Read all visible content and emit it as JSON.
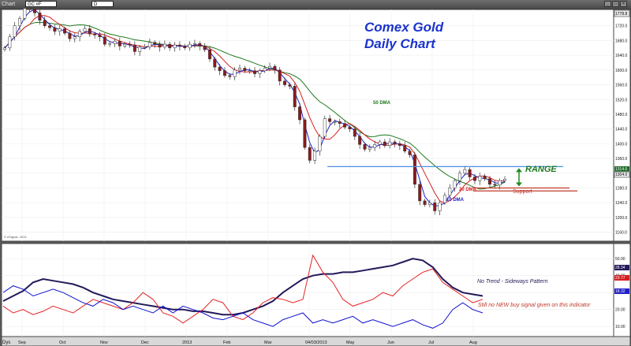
{
  "window": {
    "title": "Chart",
    "symbol": "GC #F",
    "interval": "D",
    "btn_min": "_",
    "btn_max": "□",
    "btn_close": "×"
  },
  "colors": {
    "price_up": "#ffffff",
    "price_down": "#8b1a1a",
    "ma10": "#2020c8",
    "ma20": "#d42020",
    "ma50": "#1f7a1f",
    "range_line": "#4a90e2",
    "support_line": "#c0392b",
    "osc_dark": "#221a5a",
    "osc_red": "#e52222",
    "osc_blue": "#1010d0",
    "title": "#1a33cc",
    "range_arrow": "#1f8a1f"
  },
  "chart_data": [
    {
      "type": "line",
      "panel": "price",
      "title": "Comex Gold",
      "subtitle": "Daily Chart",
      "y_ticks": [
        "1720.0",
        "1680.0",
        "1640.0",
        "1600.0",
        "1560.0",
        "1520.0",
        "1480.0",
        "1440.0",
        "1400.0",
        "1360.0",
        "1320.0",
        "1280.0",
        "1240.0",
        "1200.0",
        "1160.0"
      ],
      "ylim": [
        1140,
        1760
      ],
      "price_box_top": "1778.8",
      "price_box_last": "1314.6",
      "price_box_last2": "1304.0",
      "x_labels": [
        "Sep",
        "Oct",
        "Nov",
        "Dec",
        "2013",
        "Feb",
        "Mar",
        "04/03/2013",
        "May",
        "Jun",
        "Jul",
        "Aug"
      ],
      "closes": [
        1660,
        1690,
        1720,
        1740,
        1770,
        1765,
        1755,
        1735,
        1720,
        1715,
        1705,
        1712,
        1700,
        1685,
        1690,
        1705,
        1712,
        1698,
        1695,
        1690,
        1670,
        1672,
        1678,
        1665,
        1670,
        1668,
        1650,
        1662,
        1663,
        1675,
        1670,
        1662,
        1670,
        1660,
        1668,
        1665,
        1660,
        1670,
        1672,
        1665,
        1655,
        1630,
        1608,
        1598,
        1585,
        1582,
        1600,
        1605,
        1598,
        1598,
        1590,
        1598,
        1605,
        1610,
        1600,
        1570,
        1560,
        1556,
        1500,
        1465,
        1390,
        1355,
        1380,
        1420,
        1468,
        1460,
        1460,
        1455,
        1445,
        1440,
        1420,
        1398,
        1385,
        1390,
        1398,
        1405,
        1395,
        1405,
        1400,
        1395,
        1380,
        1370,
        1290,
        1245,
        1235,
        1240,
        1218,
        1240,
        1260,
        1280,
        1300,
        1320,
        1330,
        1310,
        1300,
        1312,
        1305,
        1290,
        1288,
        1300,
        1304
      ],
      "series": [
        {
          "name": "10 DMA",
          "label": "10 DMA"
        },
        {
          "name": "20 DMA",
          "label": "20 DMA"
        },
        {
          "name": "50 DMA",
          "label": "50 DMA"
        }
      ],
      "annotations": {
        "range": "RANGE",
        "support": "Support",
        "range_top": 1338,
        "range_bottom": 1280,
        "support_level": 1272,
        "copyright": "© eSignal, 2013"
      }
    },
    {
      "type": "line",
      "panel": "oscillator",
      "y_ticks": [
        "50.00",
        "40.00",
        "30.00",
        "20.00",
        "10.00"
      ],
      "ylim": [
        5,
        58
      ],
      "value_boxes": [
        "28.34",
        "23.77",
        "18.32"
      ],
      "series": [
        {
          "name": "ADX",
          "values": [
            25,
            28,
            31,
            36,
            38,
            37,
            36,
            35,
            33,
            30,
            28,
            26,
            25,
            24,
            23,
            22,
            21,
            20,
            20,
            19,
            19,
            18,
            17,
            17,
            18,
            20,
            22,
            25,
            30,
            34,
            38,
            40,
            41,
            41,
            42,
            42,
            43,
            44,
            45,
            46,
            48,
            50,
            49,
            45,
            38,
            33,
            30,
            29,
            28
          ]
        },
        {
          "name": "+DI",
          "values": [
            22,
            18,
            20,
            17,
            19,
            22,
            20,
            18,
            22,
            26,
            24,
            22,
            20,
            24,
            30,
            26,
            18,
            16,
            12,
            16,
            20,
            26,
            24,
            16,
            14,
            18,
            24,
            27,
            26,
            24,
            26,
            52,
            42,
            36,
            26,
            22,
            24,
            26,
            30,
            28,
            34,
            38,
            42,
            44,
            36,
            32,
            28,
            24,
            26
          ]
        },
        {
          "name": "-DI",
          "values": [
            30,
            34,
            32,
            28,
            30,
            32,
            30,
            27,
            24,
            22,
            26,
            24,
            20,
            22,
            20,
            18,
            22,
            18,
            22,
            20,
            18,
            15,
            14,
            16,
            18,
            14,
            12,
            10,
            14,
            16,
            18,
            12,
            14,
            12,
            14,
            16,
            12,
            14,
            12,
            10,
            12,
            14,
            11,
            9,
            12,
            20,
            24,
            20,
            18
          ]
        }
      ],
      "annotations": {
        "no_trend": "No Trend - Sideways Pattern",
        "no_buy": "Still no NEW buy signal given on this indicator"
      }
    }
  ],
  "footer": {
    "dys": "Dys"
  }
}
